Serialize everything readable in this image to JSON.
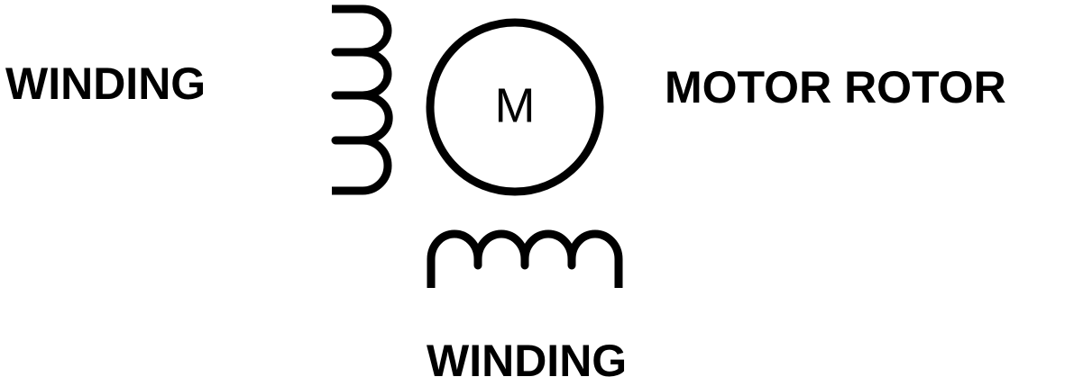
{
  "labels": {
    "left_winding": "WINDING",
    "motor_rotor": "MOTOR ROTOR",
    "bottom_winding": "WINDING"
  },
  "motor": {
    "symbol": "M"
  },
  "colors": {
    "line": "#000000",
    "background": "#ffffff"
  }
}
